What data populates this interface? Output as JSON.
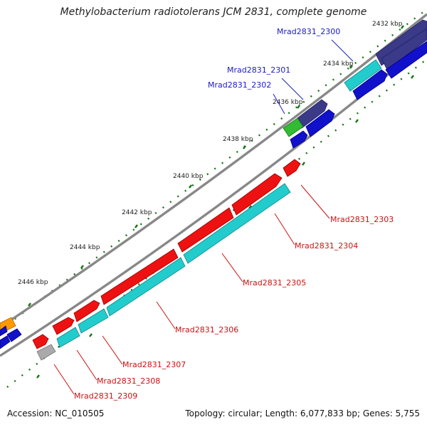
{
  "title": "Methylobacterium radiotolerans JCM 2831, complete genome",
  "footer": {
    "accession": "Accession: NC_010505",
    "stats": "Topology: circular; Length: 6,077,833 bp; Genes: 5,755"
  },
  "scale_labels": {
    "kbp_2432": "2432 kbp",
    "kbp_2434": "2434 kbp",
    "kbp_2436": "2436 kbp",
    "kbp_2438": "2438 kbp",
    "kbp_2440": "2440 kbp",
    "kbp_2442": "2442 kbp",
    "kbp_2444": "2444 kbp",
    "kbp_2446": "2446 kbp"
  },
  "genes": {
    "g2300": "Mrad2831_2300",
    "g2301": "Mrad2831_2301",
    "g2302": "Mrad2831_2302",
    "g2303": "Mrad2831_2303",
    "g2304": "Mrad2831_2304",
    "g2305": "Mrad2831_2305",
    "g2306": "Mrad2831_2306",
    "g2307": "Mrad2831_2307",
    "g2308": "Mrad2831_2308",
    "g2309": "Mrad2831_2309"
  },
  "colors": {
    "label_blue": "#1a1acc",
    "label_red": "#cc1111",
    "red": "#ee1111",
    "cyan": "#22cccc",
    "navy": "#3a3a88",
    "blue": "#1111cc",
    "green": "#33bb33",
    "orange": "#ff9900",
    "gray": "#aaaaaa",
    "tick": "#117711"
  }
}
